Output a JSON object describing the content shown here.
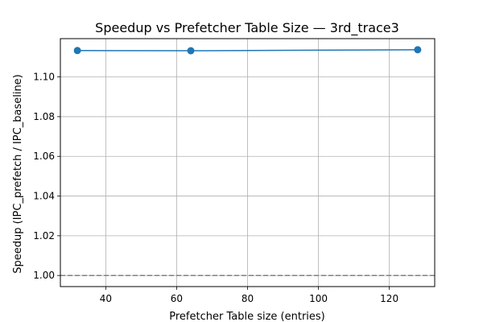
{
  "chart_data": {
    "type": "line",
    "title": "Speedup vs Prefetcher Table Size — 3rd_trace3",
    "xlabel": "Prefetcher Table size (entries)",
    "ylabel": "Speedup (IPC_prefetch / IPC_baseline)",
    "x": [
      32,
      64,
      128
    ],
    "series": [
      {
        "values": [
          1.1133,
          1.1132,
          1.1137
        ]
      }
    ],
    "xlim": [
      27.2,
      132.8
    ],
    "ylim": [
      0.9944,
      1.1193
    ],
    "xticks": [
      40,
      60,
      80,
      100,
      120
    ],
    "xtick_labels": [
      "40",
      "60",
      "80",
      "100",
      "120"
    ],
    "yticks": [
      1.0,
      1.02,
      1.04,
      1.06,
      1.08,
      1.1
    ],
    "ytick_labels": [
      "1.00",
      "1.02",
      "1.04",
      "1.06",
      "1.08",
      "1.10"
    ],
    "reference_line": {
      "y": 1.0,
      "style": "dashed"
    },
    "grid": true,
    "colors": {
      "series": "#1f77b4",
      "grid": "#b0b0b0",
      "reference": "#808080"
    }
  }
}
